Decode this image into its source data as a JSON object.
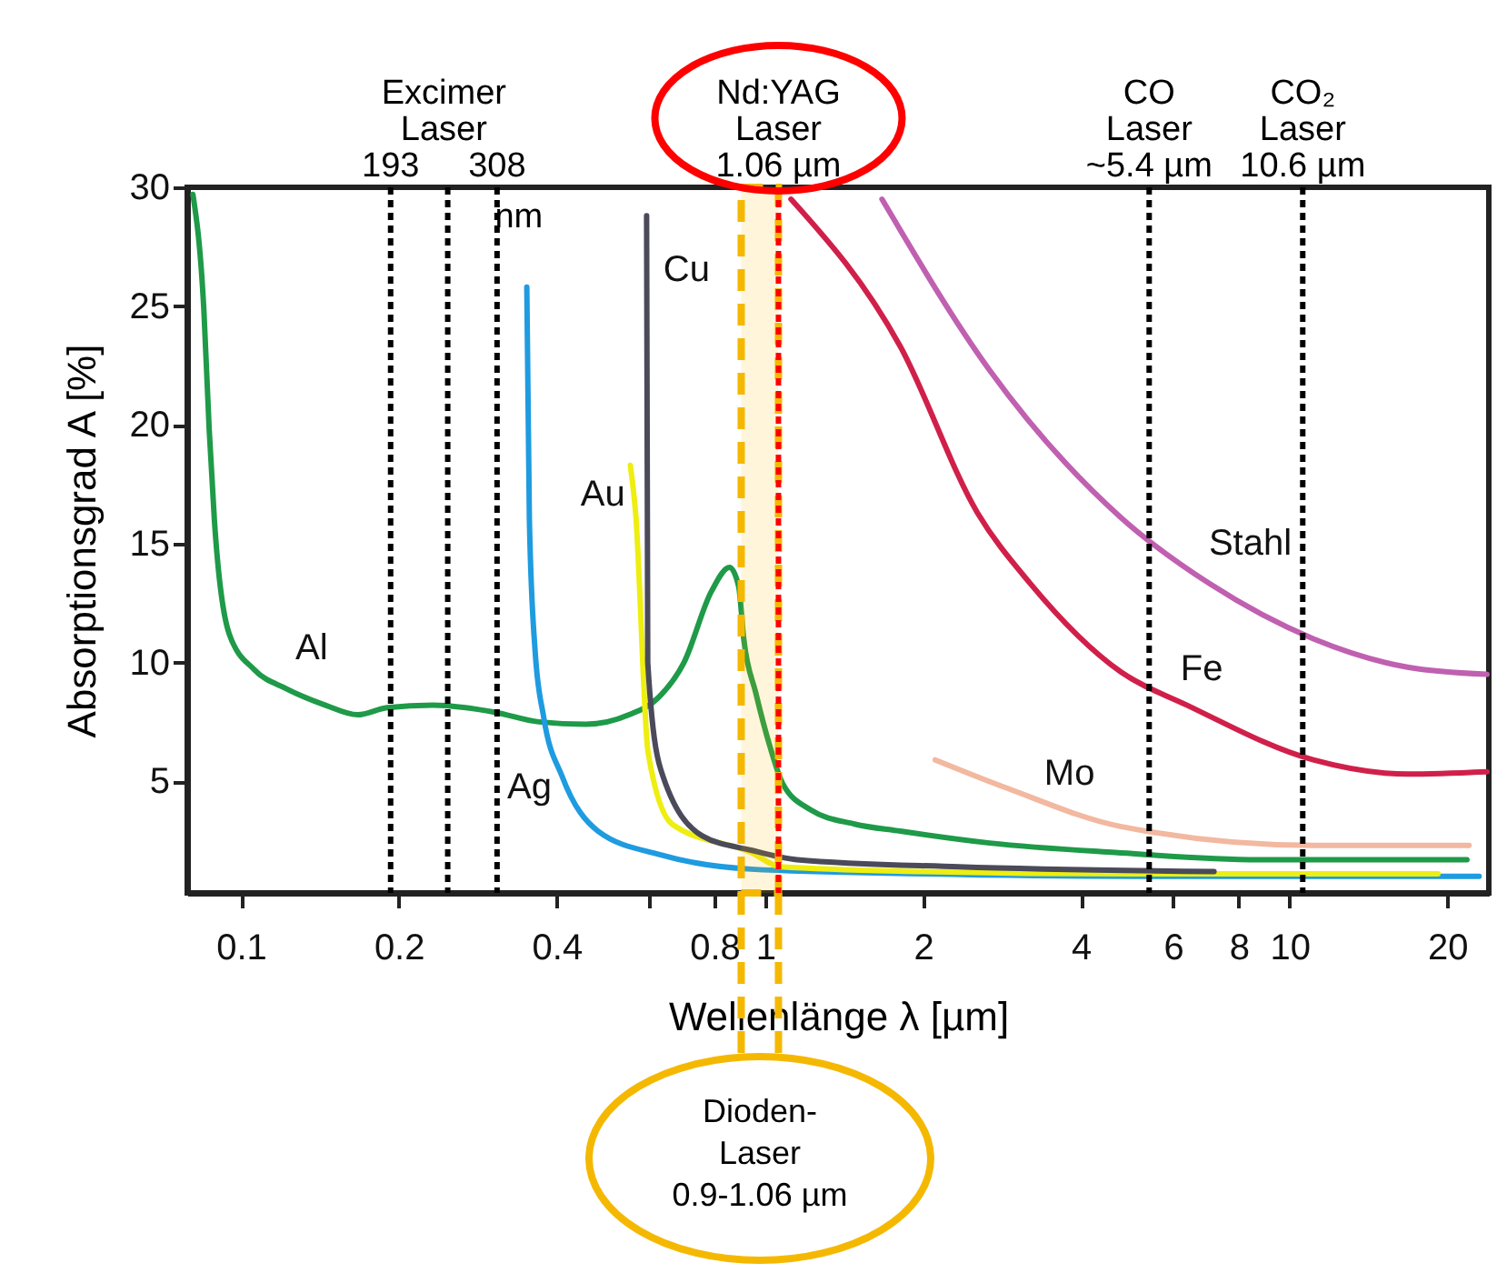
{
  "chart_data": {
    "type": "line",
    "xlabel": "Wellenlänge λ [µm]",
    "ylabel": "Absorptionsgrad A [%]",
    "log": "x",
    "xlim": [
      0.079,
      24
    ],
    "ylim": [
      0.3,
      30
    ],
    "xticks": [
      0.1,
      0.2,
      0.4,
      {
        "value": 0.6,
        "label": null
      },
      0.8,
      1,
      2,
      4,
      6,
      8,
      10,
      20
    ],
    "yticks": [
      5,
      10,
      15,
      20,
      25,
      30
    ],
    "series": [
      {
        "name": "Al",
        "color": "#1e9a48",
        "x": [
          0.081,
          0.085,
          0.087,
          0.089,
          0.095,
          0.106,
          0.122,
          0.145,
          0.167,
          0.19,
          0.232,
          0.306,
          0.37,
          0.455,
          0.55,
          0.624,
          0.7,
          0.79,
          0.855,
          0.89,
          0.91,
          0.96,
          1.02,
          1.08,
          1.22,
          1.48,
          1.81,
          2.68,
          4.65,
          8.74,
          21.8
        ],
        "values": [
          29.7,
          24.8,
          19.8,
          16,
          11.2,
          9.7,
          8.9,
          8.2,
          7.8,
          8.1,
          8.2,
          7.9,
          7.5,
          7.4,
          7.8,
          8.5,
          10,
          13,
          14,
          13.2,
          11,
          8.7,
          6.5,
          4.9,
          3.8,
          3.2,
          2.9,
          2.4,
          2,
          1.7,
          1.7
        ]
      },
      {
        "name": "Ag",
        "color": "#1f9be0",
        "x": [
          0.351,
          0.355,
          0.364,
          0.378,
          0.41,
          0.48,
          0.632,
          0.94,
          2,
          5,
          23
        ],
        "values": [
          25.8,
          16,
          10.5,
          7.7,
          5.2,
          2.9,
          1.9,
          1.3,
          1.1,
          1,
          1
        ]
      },
      {
        "name": "Au",
        "color": "#eeee10",
        "x": [
          0.553,
          0.566,
          0.598,
          0.664,
          0.94,
          1.07,
          2,
          5,
          19.2
        ],
        "values": [
          18.3,
          16.3,
          6.2,
          3.2,
          2,
          1.4,
          1.2,
          1.1,
          1.1
        ]
      },
      {
        "name": "Cu",
        "color": "#4a4a5a",
        "x": [
          0.594,
          0.597,
          0.632,
          0.759,
          0.94,
          1.15,
          2.34,
          7.18
        ],
        "values": [
          28.8,
          10,
          5.5,
          2.7,
          2.1,
          1.7,
          1.4,
          1.2
        ]
      },
      {
        "name": "Mo",
        "color": "#f2b8a0",
        "x": [
          2.11,
          2.9,
          4.76,
          11.1,
          22
        ],
        "values": [
          5.9,
          4.7,
          3.1,
          2.3,
          2.3
        ]
      },
      {
        "name": "Fe",
        "color": "#d0204a",
        "x": [
          1.12,
          1.81,
          2.54,
          3.21,
          4.77,
          6.38,
          11.1,
          16.8,
          23.8
        ],
        "values": [
          29.5,
          23.3,
          16.3,
          13.3,
          9.6,
          8.2,
          5.9,
          5.3,
          5.4
        ]
      },
      {
        "name": "Stahl",
        "color": "#c060b0",
        "x": [
          1.67,
          2.68,
          4.77,
          7.06,
          11.1,
          16.8,
          23.8
        ],
        "values": [
          29.5,
          22.3,
          16.1,
          13.3,
          11,
          9.8,
          9.5
        ]
      }
    ],
    "ref_lines": [
      {
        "axis": "x",
        "value": 0.193,
        "label": "193",
        "color": "#000000",
        "line_style": "dotted"
      },
      {
        "axis": "x",
        "value": 0.248,
        "label": null,
        "color": "#000000",
        "line_style": "dotted"
      },
      {
        "axis": "x",
        "value": 0.308,
        "label": "308",
        "color": "#000000",
        "line_style": "dotted"
      },
      {
        "axis": "x",
        "value": 1.06,
        "label": "Nd:YAG\nLaser\n1.06 µm",
        "color": "#ff0000",
        "line_style": "dotted"
      },
      {
        "axis": "x",
        "value": 5.4,
        "label": "CO\nLaser\n~5.4 µm",
        "color": "#000000",
        "line_style": "dotted"
      },
      {
        "axis": "x",
        "value": 10.6,
        "label": "CO₂\nLaser\n10.6 µm",
        "color": "#000000",
        "line_style": "dotted"
      }
    ],
    "bands": [
      {
        "axis": "x",
        "from": 0.9,
        "to": 1.06,
        "label": "Dioden-\nLaser\n0.9-1.06 µm",
        "color": "#f5b800"
      }
    ],
    "annotations": [
      "Excimer\nLaser",
      "nm"
    ]
  }
}
